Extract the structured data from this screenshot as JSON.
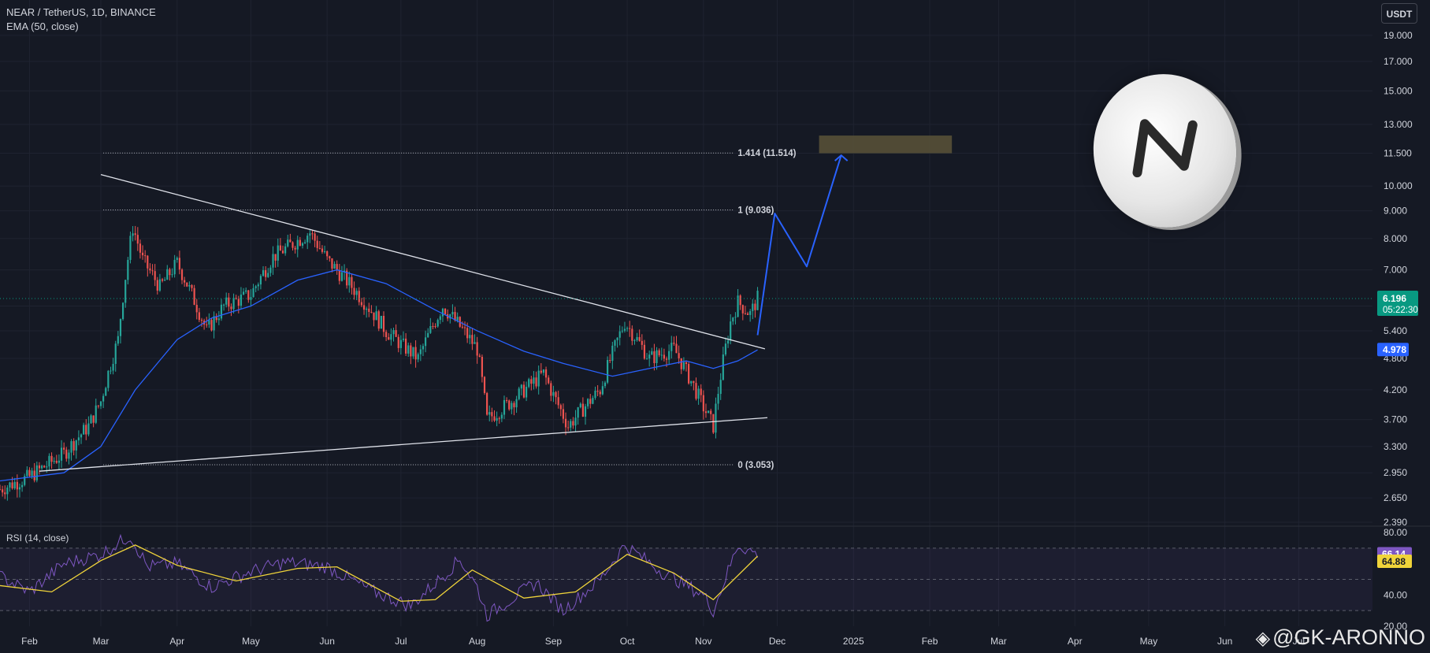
{
  "header": {
    "symbol_line": "NEAR / TetherUS, 1D, BINANCE",
    "indicator_line": "EMA (50, close)"
  },
  "currency_button": "USDT",
  "rsi_label": "RSI (14, close)",
  "watermark": {
    "icon": "diamond-logo-icon",
    "text": "@GK-ARONNO"
  },
  "colors": {
    "background": "#151924",
    "up_candle": "#26a69a",
    "down_candle": "#ef5350",
    "ema": "#2962ff",
    "projection": "#2962ff",
    "trendline": "#e0e3eb",
    "rsi_line": "#7e57c2",
    "rsi_ma": "#f0d43a",
    "price_badge": "#089981",
    "ema_badge": "#2962ff",
    "target_box": "#5b5338"
  },
  "chart_data": [
    {
      "type": "candlestick",
      "panel": "price",
      "y_scale": "log",
      "ylim": [
        2.35,
        21.5
      ],
      "xlim": [
        "2024-01-20",
        "2025-07-31"
      ],
      "x_ticks": [
        "Feb",
        "Mar",
        "Apr",
        "May",
        "Jun",
        "Jul",
        "Aug",
        "Sep",
        "Oct",
        "Nov",
        "Dec",
        "2025",
        "Feb",
        "Mar",
        "Apr",
        "May",
        "Jun",
        "Jul"
      ],
      "x_tick_dates": [
        "2024-02-01",
        "2024-03-01",
        "2024-04-01",
        "2024-05-01",
        "2024-06-01",
        "2024-07-01",
        "2024-08-01",
        "2024-09-01",
        "2024-10-01",
        "2024-11-01",
        "2024-12-01",
        "2025-01-01",
        "2025-02-01",
        "2025-03-01",
        "2025-04-01",
        "2025-05-01",
        "2025-06-01",
        "2025-07-01"
      ],
      "y_ticks": [
        "19.000",
        "17.000",
        "15.000",
        "13.000",
        "11.500",
        "10.000",
        "9.000",
        "8.000",
        "7.000",
        "6.000",
        "5.400",
        "4.800",
        "4.200",
        "3.700",
        "3.300",
        "2.950",
        "2.650",
        "2.390"
      ],
      "close_path": [
        {
          "date": "2024-01-20",
          "close": 2.75
        },
        {
          "date": "2024-02-01",
          "close": 2.9
        },
        {
          "date": "2024-02-15",
          "close": 3.2
        },
        {
          "date": "2024-02-25",
          "close": 3.6
        },
        {
          "date": "2024-03-01",
          "close": 4.0
        },
        {
          "date": "2024-03-08",
          "close": 5.2
        },
        {
          "date": "2024-03-14",
          "close": 8.4
        },
        {
          "date": "2024-03-18",
          "close": 7.3
        },
        {
          "date": "2024-03-25",
          "close": 6.5
        },
        {
          "date": "2024-04-01",
          "close": 7.2
        },
        {
          "date": "2024-04-13",
          "close": 5.4
        },
        {
          "date": "2024-04-20",
          "close": 6.0
        },
        {
          "date": "2024-05-01",
          "close": 6.3
        },
        {
          "date": "2024-05-10",
          "close": 7.4
        },
        {
          "date": "2024-05-25",
          "close": 8.2
        },
        {
          "date": "2024-06-01",
          "close": 7.3
        },
        {
          "date": "2024-06-10",
          "close": 6.6
        },
        {
          "date": "2024-06-25",
          "close": 5.4
        },
        {
          "date": "2024-07-01",
          "close": 5.1
        },
        {
          "date": "2024-07-08",
          "close": 4.8
        },
        {
          "date": "2024-07-18",
          "close": 6.0
        },
        {
          "date": "2024-07-25",
          "close": 5.5
        },
        {
          "date": "2024-08-01",
          "close": 5.0
        },
        {
          "date": "2024-08-05",
          "close": 3.7
        },
        {
          "date": "2024-08-15",
          "close": 4.0
        },
        {
          "date": "2024-08-28",
          "close": 4.5
        },
        {
          "date": "2024-09-01",
          "close": 4.1
        },
        {
          "date": "2024-09-07",
          "close": 3.6
        },
        {
          "date": "2024-09-20",
          "close": 4.2
        },
        {
          "date": "2024-09-30",
          "close": 5.6
        },
        {
          "date": "2024-10-10",
          "close": 4.8
        },
        {
          "date": "2024-10-20",
          "close": 5.0
        },
        {
          "date": "2024-11-01",
          "close": 3.9
        },
        {
          "date": "2024-11-05",
          "close": 3.6
        },
        {
          "date": "2024-11-12",
          "close": 5.6
        },
        {
          "date": "2024-11-15",
          "close": 6.1
        },
        {
          "date": "2024-11-20",
          "close": 5.8
        },
        {
          "date": "2024-11-23",
          "close": 6.196
        }
      ],
      "ema_path": [
        {
          "date": "2024-01-20",
          "value": 2.85
        },
        {
          "date": "2024-02-15",
          "value": 2.95
        },
        {
          "date": "2024-03-01",
          "value": 3.3
        },
        {
          "date": "2024-03-15",
          "value": 4.2
        },
        {
          "date": "2024-04-01",
          "value": 5.2
        },
        {
          "date": "2024-04-15",
          "value": 5.7
        },
        {
          "date": "2024-05-01",
          "value": 6.0
        },
        {
          "date": "2024-05-20",
          "value": 6.7
        },
        {
          "date": "2024-06-05",
          "value": 7.0
        },
        {
          "date": "2024-06-25",
          "value": 6.6
        },
        {
          "date": "2024-07-15",
          "value": 5.9
        },
        {
          "date": "2024-08-01",
          "value": 5.4
        },
        {
          "date": "2024-08-20",
          "value": 4.95
        },
        {
          "date": "2024-09-05",
          "value": 4.7
        },
        {
          "date": "2024-09-25",
          "value": 4.45
        },
        {
          "date": "2024-10-10",
          "value": 4.6
        },
        {
          "date": "2024-10-25",
          "value": 4.75
        },
        {
          "date": "2024-11-05",
          "value": 4.6
        },
        {
          "date": "2024-11-15",
          "value": 4.75
        },
        {
          "date": "2024-11-23",
          "value": 4.978
        }
      ],
      "trendlines": [
        {
          "name": "descending-resistance",
          "from": {
            "date": "2024-03-01",
            "price": 10.5
          },
          "to": {
            "date": "2024-11-26",
            "price": 5.0
          }
        },
        {
          "name": "ascending-support",
          "from": {
            "date": "2024-02-05",
            "price": 2.97
          },
          "to": {
            "date": "2024-11-27",
            "price": 3.73
          }
        }
      ],
      "fib_levels": [
        {
          "label": "1.414 (11.514)",
          "value": 11.514
        },
        {
          "label": "1 (9.036)",
          "value": 9.036
        },
        {
          "label": "0 (3.053)",
          "value": 3.053
        }
      ],
      "fib_range": {
        "start": "2024-03-02",
        "end": "2024-11-13"
      },
      "projection": [
        {
          "date": "2024-11-23",
          "price": 5.3
        },
        {
          "date": "2024-11-30",
          "price": 8.9
        },
        {
          "date": "2024-12-13",
          "price": 7.1
        },
        {
          "date": "2024-12-27",
          "price": 11.4
        }
      ],
      "target_zone": {
        "start": "2024-12-18",
        "end": "2025-02-10",
        "low": 11.5,
        "high": 12.4
      },
      "last_price": {
        "value": 6.196,
        "label": "6.196",
        "countdown": "05:22:30"
      },
      "ema_last": {
        "value": 4.978,
        "label": "4.978"
      }
    },
    {
      "type": "line",
      "panel": "rsi",
      "title": "RSI (14, close)",
      "ylim": [
        20,
        80
      ],
      "y_ticks": [
        "80.00",
        "40.00",
        "20.00"
      ],
      "bands": [
        30,
        50,
        70
      ],
      "series": [
        {
          "role": "rsi",
          "points": [
            {
              "date": "2024-01-20",
              "value": 52
            },
            {
              "date": "2024-02-01",
              "value": 42
            },
            {
              "date": "2024-02-15",
              "value": 60
            },
            {
              "date": "2024-03-01",
              "value": 66
            },
            {
              "date": "2024-03-13",
              "value": 78
            },
            {
              "date": "2024-03-20",
              "value": 58
            },
            {
              "date": "2024-04-01",
              "value": 60
            },
            {
              "date": "2024-04-15",
              "value": 45
            },
            {
              "date": "2024-05-01",
              "value": 55
            },
            {
              "date": "2024-05-15",
              "value": 61
            },
            {
              "date": "2024-06-01",
              "value": 58
            },
            {
              "date": "2024-06-20",
              "value": 42
            },
            {
              "date": "2024-07-05",
              "value": 33
            },
            {
              "date": "2024-07-20",
              "value": 55
            },
            {
              "date": "2024-07-25",
              "value": 63
            },
            {
              "date": "2024-08-01",
              "value": 45
            },
            {
              "date": "2024-08-05",
              "value": 27
            },
            {
              "date": "2024-08-25",
              "value": 48
            },
            {
              "date": "2024-09-05",
              "value": 30
            },
            {
              "date": "2024-09-20",
              "value": 50
            },
            {
              "date": "2024-09-30",
              "value": 72
            },
            {
              "date": "2024-10-15",
              "value": 55
            },
            {
              "date": "2024-11-01",
              "value": 40
            },
            {
              "date": "2024-11-05",
              "value": 30
            },
            {
              "date": "2024-11-15",
              "value": 72
            },
            {
              "date": "2024-11-23",
              "value": 66.14
            }
          ]
        },
        {
          "role": "rsi-ma",
          "points": [
            {
              "date": "2024-01-20",
              "value": 46
            },
            {
              "date": "2024-02-10",
              "value": 42
            },
            {
              "date": "2024-03-01",
              "value": 62
            },
            {
              "date": "2024-03-15",
              "value": 72
            },
            {
              "date": "2024-04-01",
              "value": 59
            },
            {
              "date": "2024-04-25",
              "value": 49
            },
            {
              "date": "2024-05-20",
              "value": 57
            },
            {
              "date": "2024-06-05",
              "value": 58
            },
            {
              "date": "2024-07-01",
              "value": 36
            },
            {
              "date": "2024-07-15",
              "value": 37
            },
            {
              "date": "2024-07-30",
              "value": 56
            },
            {
              "date": "2024-08-20",
              "value": 38
            },
            {
              "date": "2024-09-10",
              "value": 42
            },
            {
              "date": "2024-10-01",
              "value": 66
            },
            {
              "date": "2024-10-20",
              "value": 54
            },
            {
              "date": "2024-11-05",
              "value": 37
            },
            {
              "date": "2024-11-23",
              "value": 64.88
            }
          ]
        }
      ],
      "last_values": {
        "rsi": "66.14",
        "rsi_ma": "64.88"
      }
    }
  ]
}
